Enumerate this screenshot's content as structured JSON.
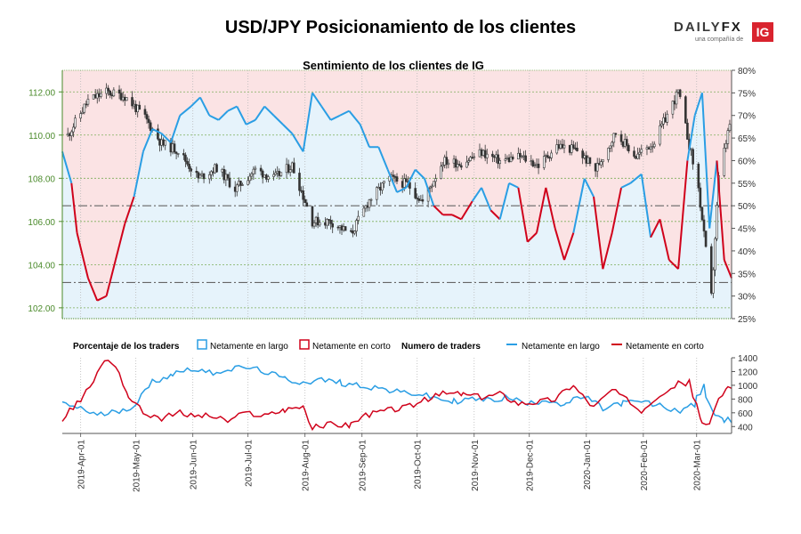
{
  "header": {
    "title": "USD/JPY Posicionamiento de los clientes"
  },
  "brand": {
    "name_part1": "DAILY",
    "name_part2": "FX",
    "tagline": "una compañía de",
    "badge": "IG"
  },
  "colors": {
    "long": "#2a9ee4",
    "short": "#d0021b",
    "long_fill": "#e6f3fb",
    "short_fill": "#fbe3e4",
    "price_tick": "#4a8a2a",
    "candle": "#333333"
  },
  "chart_data": [
    {
      "type": "line",
      "title": "Sentimiento de los clientes de IG",
      "x_ticks": [
        "2019-Apr-01",
        "2019-May-01",
        "2019-Jun-01",
        "2019-Jul-01",
        "2019-Aug-01",
        "2019-Sep-01",
        "2019-Oct-01",
        "2019-Nov-01",
        "2019-Dec-01",
        "2020-Jan-01",
        "2020-Feb-01",
        "2020-Mar-01"
      ],
      "x_range": [
        "2019-03-22",
        "2020-03-20"
      ],
      "left_axis": {
        "ylim": [
          101.5,
          113.0
        ],
        "ticks": [
          "102.00",
          "104.00",
          "106.00",
          "108.00",
          "110.00",
          "112.00"
        ]
      },
      "right_axis": {
        "ylim": [
          25,
          80
        ],
        "ticks": [
          "25%",
          "30%",
          "35%",
          "40%",
          "45%",
          "50%",
          "55%",
          "60%",
          "65%",
          "70%",
          "75%",
          "80%"
        ]
      },
      "reference_lines_pct": [
        50,
        33
      ],
      "price": [
        [
          "2019-03-25",
          110.0
        ],
        [
          "2019-04-05",
          111.6
        ],
        [
          "2019-04-15",
          112.0
        ],
        [
          "2019-04-25",
          111.8
        ],
        [
          "2019-05-06",
          110.8
        ],
        [
          "2019-05-15",
          109.6
        ],
        [
          "2019-05-24",
          109.3
        ],
        [
          "2019-06-04",
          108.0
        ],
        [
          "2019-06-14",
          108.5
        ],
        [
          "2019-06-24",
          107.5
        ],
        [
          "2019-07-05",
          108.4
        ],
        [
          "2019-07-15",
          108.0
        ],
        [
          "2019-07-25",
          108.6
        ],
        [
          "2019-08-05",
          106.0
        ],
        [
          "2019-08-15",
          106.0
        ],
        [
          "2019-08-26",
          105.4
        ],
        [
          "2019-09-05",
          107.0
        ],
        [
          "2019-09-16",
          108.0
        ],
        [
          "2019-09-26",
          107.7
        ],
        [
          "2019-10-04",
          106.9
        ],
        [
          "2019-10-15",
          108.8
        ],
        [
          "2019-10-25",
          108.7
        ],
        [
          "2019-11-05",
          109.2
        ],
        [
          "2019-11-15",
          108.8
        ],
        [
          "2019-11-26",
          109.0
        ],
        [
          "2019-12-06",
          108.6
        ],
        [
          "2019-12-16",
          109.5
        ],
        [
          "2019-12-27",
          109.3
        ],
        [
          "2020-01-06",
          108.4
        ],
        [
          "2020-01-17",
          110.1
        ],
        [
          "2020-01-28",
          109.0
        ],
        [
          "2020-02-07",
          109.7
        ],
        [
          "2020-02-20",
          112.0
        ],
        [
          "2020-03-02",
          107.5
        ],
        [
          "2020-03-09",
          102.5
        ],
        [
          "2020-03-13",
          108.0
        ],
        [
          "2020-03-19",
          110.5
        ]
      ],
      "series": [
        {
          "name": "Netamente en largo",
          "color": "#2a9ee4"
        },
        {
          "name": "Netamente en corto",
          "color": "#d0021b"
        }
      ],
      "long_pct": [
        [
          "2019-03-22",
          62
        ],
        [
          "2019-03-27",
          55
        ],
        [
          "2019-03-30",
          44
        ],
        [
          "2019-04-05",
          34
        ],
        [
          "2019-04-10",
          29
        ],
        [
          "2019-04-15",
          30
        ],
        [
          "2019-04-20",
          38
        ],
        [
          "2019-04-25",
          46
        ],
        [
          "2019-04-30",
          52
        ],
        [
          "2019-05-05",
          62
        ],
        [
          "2019-05-10",
          67
        ],
        [
          "2019-05-15",
          66
        ],
        [
          "2019-05-20",
          64
        ],
        [
          "2019-05-25",
          70
        ],
        [
          "2019-05-31",
          72
        ],
        [
          "2019-06-05",
          74
        ],
        [
          "2019-06-10",
          70
        ],
        [
          "2019-06-15",
          69
        ],
        [
          "2019-06-20",
          71
        ],
        [
          "2019-06-25",
          72
        ],
        [
          "2019-06-30",
          68
        ],
        [
          "2019-07-05",
          69
        ],
        [
          "2019-07-10",
          72
        ],
        [
          "2019-07-15",
          70
        ],
        [
          "2019-07-20",
          68
        ],
        [
          "2019-07-25",
          66
        ],
        [
          "2019-07-31",
          62
        ],
        [
          "2019-08-05",
          75
        ],
        [
          "2019-08-10",
          72
        ],
        [
          "2019-08-15",
          69
        ],
        [
          "2019-08-20",
          70
        ],
        [
          "2019-08-25",
          71
        ],
        [
          "2019-08-31",
          68
        ],
        [
          "2019-09-05",
          63
        ],
        [
          "2019-09-10",
          63
        ],
        [
          "2019-09-15",
          58
        ],
        [
          "2019-09-20",
          53
        ],
        [
          "2019-09-25",
          54
        ],
        [
          "2019-09-30",
          58
        ],
        [
          "2019-10-05",
          56
        ],
        [
          "2019-10-10",
          50
        ],
        [
          "2019-10-15",
          48
        ],
        [
          "2019-10-20",
          48
        ],
        [
          "2019-10-25",
          47
        ],
        [
          "2019-10-31",
          51
        ],
        [
          "2019-11-05",
          54
        ],
        [
          "2019-11-10",
          49
        ],
        [
          "2019-11-15",
          47
        ],
        [
          "2019-11-20",
          55
        ],
        [
          "2019-11-25",
          54
        ],
        [
          "2019-11-30",
          42
        ],
        [
          "2019-12-05",
          44
        ],
        [
          "2019-12-10",
          54
        ],
        [
          "2019-12-15",
          45
        ],
        [
          "2019-12-20",
          38
        ],
        [
          "2019-12-25",
          44
        ],
        [
          "2019-12-31",
          56
        ],
        [
          "2020-01-05",
          52
        ],
        [
          "2020-01-10",
          36
        ],
        [
          "2020-01-15",
          44
        ],
        [
          "2020-01-20",
          54
        ],
        [
          "2020-01-25",
          55
        ],
        [
          "2020-01-31",
          57
        ],
        [
          "2020-02-05",
          43
        ],
        [
          "2020-02-10",
          47
        ],
        [
          "2020-02-15",
          38
        ],
        [
          "2020-02-20",
          36
        ],
        [
          "2020-02-25",
          60
        ],
        [
          "2020-02-29",
          70
        ],
        [
          "2020-03-04",
          75
        ],
        [
          "2020-03-08",
          45
        ],
        [
          "2020-03-12",
          60
        ],
        [
          "2020-03-16",
          38
        ],
        [
          "2020-03-20",
          34
        ]
      ]
    },
    {
      "type": "line",
      "title": "Numero de traders",
      "legend_group_label": "Porcentaje de los traders",
      "ylim": [
        300,
        1400
      ],
      "y_ticks": [
        400,
        600,
        800,
        1000,
        1200,
        1400
      ],
      "series": [
        {
          "name": "Netamente en largo",
          "color": "#2a9ee4",
          "values": [
            [
              "2019-03-22",
              720
            ],
            [
              "2019-04-01",
              680
            ],
            [
              "2019-04-10",
              560
            ],
            [
              "2019-04-20",
              620
            ],
            [
              "2019-04-30",
              700
            ],
            [
              "2019-05-10",
              1050
            ],
            [
              "2019-05-20",
              1150
            ],
            [
              "2019-05-31",
              1250
            ],
            [
              "2019-06-10",
              1180
            ],
            [
              "2019-06-20",
              1230
            ],
            [
              "2019-06-30",
              1260
            ],
            [
              "2019-07-10",
              1200
            ],
            [
              "2019-07-20",
              1100
            ],
            [
              "2019-07-31",
              1040
            ],
            [
              "2019-08-10",
              1080
            ],
            [
              "2019-08-20",
              1040
            ],
            [
              "2019-08-31",
              1000
            ],
            [
              "2019-09-10",
              960
            ],
            [
              "2019-09-20",
              900
            ],
            [
              "2019-09-30",
              880
            ],
            [
              "2019-10-10",
              820
            ],
            [
              "2019-10-20",
              760
            ],
            [
              "2019-10-31",
              800
            ],
            [
              "2019-11-10",
              780
            ],
            [
              "2019-11-20",
              830
            ],
            [
              "2019-11-30",
              720
            ],
            [
              "2019-12-10",
              800
            ],
            [
              "2019-12-20",
              720
            ],
            [
              "2019-12-31",
              840
            ],
            [
              "2020-01-10",
              660
            ],
            [
              "2020-01-20",
              740
            ],
            [
              "2020-01-31",
              760
            ],
            [
              "2020-02-10",
              700
            ],
            [
              "2020-02-20",
              620
            ],
            [
              "2020-02-29",
              720
            ],
            [
              "2020-03-05",
              980
            ],
            [
              "2020-03-10",
              620
            ],
            [
              "2020-03-15",
              480
            ],
            [
              "2020-03-20",
              500
            ]
          ]
        },
        {
          "name": "Netamente en corto",
          "color": "#d0021b",
          "values": [
            [
              "2019-03-22",
              520
            ],
            [
              "2019-04-01",
              780
            ],
            [
              "2019-04-08",
              1060
            ],
            [
              "2019-04-14",
              1380
            ],
            [
              "2019-04-20",
              1300
            ],
            [
              "2019-04-26",
              900
            ],
            [
              "2019-05-05",
              600
            ],
            [
              "2019-05-15",
              520
            ],
            [
              "2019-05-25",
              600
            ],
            [
              "2019-05-31",
              560
            ],
            [
              "2019-06-10",
              560
            ],
            [
              "2019-06-20",
              480
            ],
            [
              "2019-06-30",
              600
            ],
            [
              "2019-07-10",
              560
            ],
            [
              "2019-07-20",
              640
            ],
            [
              "2019-07-31",
              700
            ],
            [
              "2019-08-05",
              380
            ],
            [
              "2019-08-15",
              440
            ],
            [
              "2019-08-25",
              420
            ],
            [
              "2019-09-05",
              580
            ],
            [
              "2019-09-15",
              640
            ],
            [
              "2019-09-25",
              680
            ],
            [
              "2019-10-05",
              780
            ],
            [
              "2019-10-15",
              880
            ],
            [
              "2019-10-25",
              880
            ],
            [
              "2019-11-05",
              820
            ],
            [
              "2019-11-15",
              880
            ],
            [
              "2019-11-25",
              740
            ],
            [
              "2019-12-05",
              760
            ],
            [
              "2019-12-15",
              800
            ],
            [
              "2019-12-25",
              1020
            ],
            [
              "2020-01-05",
              680
            ],
            [
              "2020-01-15",
              940
            ],
            [
              "2020-01-25",
              740
            ],
            [
              "2020-01-31",
              640
            ],
            [
              "2020-02-10",
              880
            ],
            [
              "2020-02-20",
              1020
            ],
            [
              "2020-02-26",
              1040
            ],
            [
              "2020-03-03",
              520
            ],
            [
              "2020-03-08",
              400
            ],
            [
              "2020-03-13",
              780
            ],
            [
              "2020-03-17",
              960
            ],
            [
              "2020-03-20",
              1000
            ]
          ]
        }
      ]
    }
  ]
}
